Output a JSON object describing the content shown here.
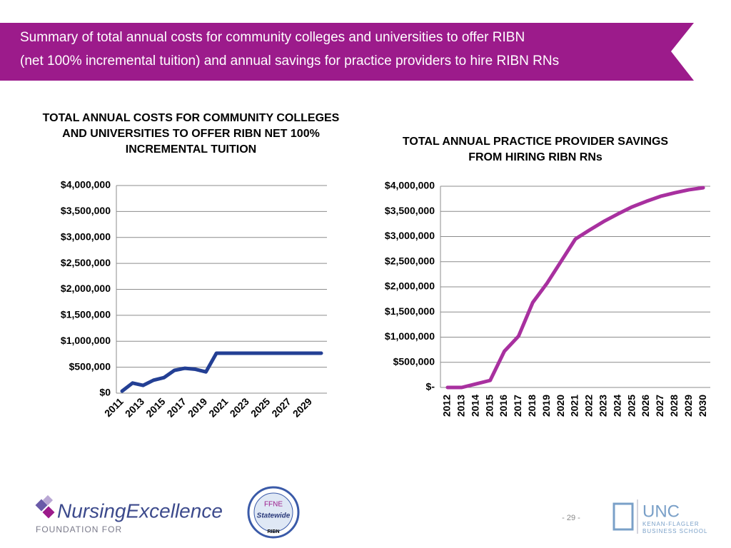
{
  "header": {
    "title_line1": "Summary of total annual costs for community colleges and universities to offer RIBN",
    "title_line2": "(net 100% incremental tuition) and annual savings for practice providers to hire RIBN RNs"
  },
  "chart_data": [
    {
      "type": "line",
      "title": "TOTAL ANNUAL COSTS FOR COMMUNITY COLLEGES AND UNIVERSITIES TO OFFER RIBN NET 100% INCREMENTAL TUITION",
      "categories": [
        "2011",
        null,
        "2013",
        null,
        "2015",
        null,
        "2017",
        null,
        "2019",
        null,
        "2021",
        null,
        "2023",
        null,
        "2025",
        null,
        "2027",
        null,
        "2029",
        null
      ],
      "series": [
        {
          "color": "#233f94",
          "values": [
            40000,
            195000,
            150000,
            250000,
            300000,
            440000,
            480000,
            460000,
            410000,
            770000,
            770000,
            770000,
            770000,
            770000,
            770000,
            770000,
            770000,
            770000,
            770000,
            770000
          ]
        }
      ],
      "ylim": [
        0,
        4000000
      ],
      "yticks": [
        {
          "value": 0,
          "label": "$0"
        },
        {
          "value": 500000,
          "label": "$500,000"
        },
        {
          "value": 1000000,
          "label": "$1,000,000"
        },
        {
          "value": 1500000,
          "label": "$1,500,000"
        },
        {
          "value": 2000000,
          "label": "$2,000,000"
        },
        {
          "value": 2500000,
          "label": "$2,500,000"
        },
        {
          "value": 3000000,
          "label": "$3,000,000"
        },
        {
          "value": 3500000,
          "label": "$3,500,000"
        },
        {
          "value": 4000000,
          "label": "$4,000,000"
        }
      ],
      "grid": true
    },
    {
      "type": "line",
      "title": "TOTAL ANNUAL PRACTICE PROVIDER SAVINGS FROM HIRING RIBN RNs",
      "categories": [
        "2012",
        "2013",
        "2014",
        "2015",
        "2016",
        "2017",
        "2018",
        "2019",
        "2020",
        "2021",
        "2022",
        "2023",
        "2024",
        "2025",
        "2026",
        "2027",
        "2028",
        "2029",
        "2030"
      ],
      "series": [
        {
          "color": "#a8309f",
          "values": [
            0,
            0,
            70000,
            140000,
            720000,
            1020000,
            1690000,
            2070000,
            2510000,
            2950000,
            3130000,
            3300000,
            3450000,
            3590000,
            3700000,
            3800000,
            3870000,
            3930000,
            3970000
          ]
        }
      ],
      "ylim": [
        0,
        4000000
      ],
      "yticks": [
        {
          "value": 0,
          "label": "$-"
        },
        {
          "value": 500000,
          "label": "$500,000"
        },
        {
          "value": 1000000,
          "label": "$1,000,000"
        },
        {
          "value": 1500000,
          "label": "$1,500,000"
        },
        {
          "value": 2000000,
          "label": "$2,000,000"
        },
        {
          "value": 2500000,
          "label": "$2,500,000"
        },
        {
          "value": 3000000,
          "label": "$3,000,000"
        },
        {
          "value": 3500000,
          "label": "$3,500,000"
        },
        {
          "value": 4000000,
          "label": "$4,000,000"
        }
      ],
      "grid": true
    }
  ],
  "footer": {
    "page": "- 29 -",
    "logo1_name": "NursingExcellence",
    "logo1_sub": "FOUNDATION FOR",
    "logo2_top": "FFNE",
    "logo2_mid": "Statewide",
    "logo2_bottom": "RIBN",
    "logo3_name": "UNC",
    "logo3_line1": "KENAN-FLAGLER",
    "logo3_line2": "BUSINESS SCHOOL"
  }
}
